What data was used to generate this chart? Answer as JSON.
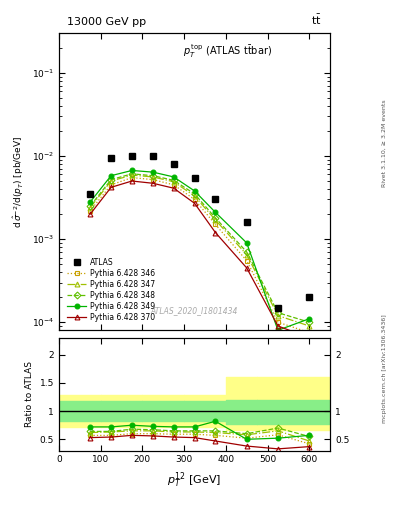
{
  "atlas_x": [
    75,
    125,
    175,
    225,
    275,
    325,
    375,
    450,
    525,
    600
  ],
  "atlas_y": [
    0.0035,
    0.0095,
    0.01,
    0.01,
    0.008,
    0.0055,
    0.003,
    0.0016,
    0.00015,
    0.0002
  ],
  "py346_x": [
    75,
    125,
    175,
    225,
    275,
    325,
    375,
    450,
    525,
    600
  ],
  "py346_y": [
    0.0022,
    0.0045,
    0.0055,
    0.0052,
    0.0045,
    0.003,
    0.0015,
    0.00055,
    0.0001,
    7.5e-05
  ],
  "py346_color": "#c8a000",
  "py346_label": "Pythia 6.428 346",
  "py347_x": [
    75,
    125,
    175,
    225,
    275,
    325,
    375,
    450,
    525,
    600
  ],
  "py347_y": [
    0.0024,
    0.005,
    0.0059,
    0.0056,
    0.0049,
    0.0033,
    0.0017,
    0.00065,
    0.00012,
    9e-05
  ],
  "py347_color": "#a0c000",
  "py347_label": "Pythia 6.428 347",
  "py348_x": [
    75,
    125,
    175,
    225,
    275,
    325,
    375,
    450,
    525,
    600
  ],
  "py348_y": [
    0.0025,
    0.0052,
    0.0061,
    0.0058,
    0.0051,
    0.0035,
    0.0018,
    0.0007,
    0.00013,
    0.0001
  ],
  "py348_color": "#60c000",
  "py348_label": "Pythia 6.428 348",
  "py349_x": [
    75,
    125,
    175,
    225,
    275,
    325,
    375,
    450,
    525,
    600
  ],
  "py349_y": [
    0.0028,
    0.0058,
    0.0067,
    0.0064,
    0.0056,
    0.0038,
    0.0021,
    0.0009,
    8e-05,
    0.00011
  ],
  "py349_color": "#00b400",
  "py349_label": "Pythia 6.428 349",
  "py370_x": [
    75,
    125,
    175,
    225,
    275,
    325,
    375,
    450,
    525,
    600
  ],
  "py370_y": [
    0.002,
    0.0042,
    0.005,
    0.0047,
    0.0041,
    0.0027,
    0.0012,
    0.00045,
    9e-05,
    6.5e-05
  ],
  "py370_color": "#a00000",
  "py370_label": "Pythia 6.428 370",
  "ratio_x": [
    75,
    125,
    175,
    225,
    275,
    325,
    375,
    450,
    525,
    600
  ],
  "ratio346": [
    0.57,
    0.57,
    0.6,
    0.6,
    0.59,
    0.59,
    0.57,
    0.52,
    0.58,
    0.42
  ],
  "ratio347": [
    0.62,
    0.63,
    0.65,
    0.65,
    0.63,
    0.63,
    0.62,
    0.58,
    0.65,
    0.47
  ],
  "ratio348": [
    0.64,
    0.64,
    0.68,
    0.67,
    0.65,
    0.65,
    0.65,
    0.6,
    0.7,
    0.55
  ],
  "ratio349": [
    0.72,
    0.72,
    0.75,
    0.73,
    0.72,
    0.72,
    0.82,
    0.5,
    0.52,
    0.57
  ],
  "ratio370": [
    0.53,
    0.54,
    0.57,
    0.56,
    0.54,
    0.53,
    0.47,
    0.38,
    0.33,
    0.37
  ],
  "band_edges": [
    0,
    100,
    200,
    300,
    400,
    475,
    650
  ],
  "band_inner_lo": [
    0.82,
    0.82,
    0.82,
    0.82,
    0.78,
    0.78,
    0.78
  ],
  "band_inner_hi": [
    1.18,
    1.18,
    1.18,
    1.18,
    1.2,
    1.2,
    1.2
  ],
  "band_outer_lo": [
    0.72,
    0.72,
    0.72,
    0.72,
    0.66,
    0.66,
    0.66
  ],
  "band_outer_hi": [
    1.28,
    1.28,
    1.28,
    1.28,
    1.6,
    1.6,
    1.6
  ],
  "xlim": [
    0,
    650
  ],
  "ylim_main": [
    8e-05,
    0.3
  ],
  "ylim_ratio": [
    0.3,
    2.3
  ]
}
